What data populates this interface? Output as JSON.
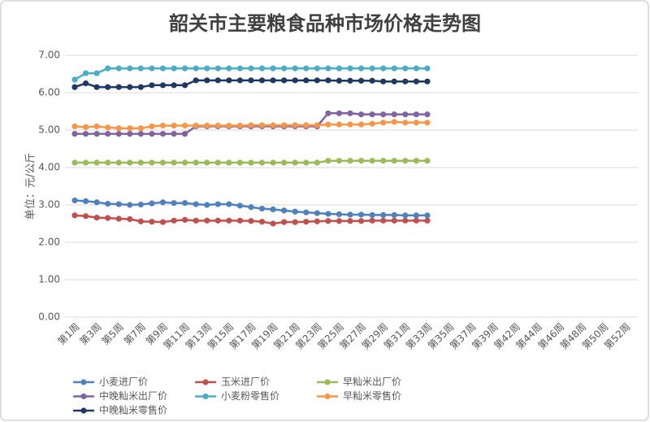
{
  "chart_data": {
    "type": "line",
    "title": "韶关市主要粮食品种市场价格走势图",
    "y_label": "单位：元/公斤",
    "categories": [
      "第1周",
      null,
      "第3周",
      null,
      "第5周",
      null,
      "第7周",
      null,
      "第9周",
      null,
      "第11周",
      null,
      "第13周",
      null,
      "第15周",
      null,
      "第17周",
      null,
      "第19周",
      null,
      "第21周",
      null,
      "第23周",
      null,
      "第25周",
      null,
      "第27周",
      null,
      "第29周",
      null,
      "第31周",
      null,
      "第33周",
      null,
      "第35周",
      null,
      "第37周",
      null,
      "第39周",
      null,
      "第42周",
      null,
      "第44周",
      null,
      "第46周",
      null,
      "第48周",
      null,
      "第50周",
      null,
      "第52周"
    ],
    "ylim": [
      0,
      7
    ],
    "yticks": [
      {
        "value": 0,
        "label": "0.00"
      },
      {
        "value": 1,
        "label": "1.00"
      },
      {
        "value": 2,
        "label": "2.00"
      },
      {
        "value": 3,
        "label": "3.00"
      },
      {
        "value": 4,
        "label": "4.00"
      },
      {
        "value": 5,
        "label": "5.00"
      },
      {
        "value": 6,
        "label": "6.00"
      },
      {
        "value": 7,
        "label": "7.00"
      }
    ],
    "grid": true,
    "legend": "bottom",
    "series": [
      {
        "name": "小麦进厂价",
        "color": "#4f81bd",
        "values": [
          3.12,
          3.1,
          3.07,
          3.03,
          3.02,
          3.0,
          3.01,
          3.04,
          3.07,
          3.05,
          3.05,
          3.02,
          3.0,
          3.02,
          3.02,
          2.98,
          2.94,
          2.9,
          2.88,
          2.85,
          2.82,
          2.8,
          2.78,
          2.76,
          2.75,
          2.74,
          2.74,
          2.73,
          2.73,
          2.73,
          2.72,
          2.72,
          2.72,
          null,
          null,
          null,
          null,
          null,
          null,
          null,
          null,
          null,
          null,
          null,
          null,
          null,
          null,
          null,
          null,
          null,
          null
        ]
      },
      {
        "name": "玉米进厂价",
        "color": "#c0504d",
        "values": [
          2.72,
          2.7,
          2.66,
          2.65,
          2.63,
          2.62,
          2.56,
          2.55,
          2.54,
          2.58,
          2.6,
          2.58,
          2.58,
          2.58,
          2.58,
          2.58,
          2.57,
          2.55,
          2.5,
          2.54,
          2.54,
          2.55,
          2.56,
          2.57,
          2.57,
          2.57,
          2.57,
          2.58,
          2.58,
          2.58,
          2.58,
          2.58,
          2.58,
          null,
          null,
          null,
          null,
          null,
          null,
          null,
          null,
          null,
          null,
          null,
          null,
          null,
          null,
          null,
          null,
          null,
          null
        ]
      },
      {
        "name": "早籼米出厂价",
        "color": "#9bbb59",
        "values": [
          4.13,
          4.13,
          4.13,
          4.13,
          4.13,
          4.13,
          4.13,
          4.13,
          4.13,
          4.13,
          4.13,
          4.13,
          4.13,
          4.13,
          4.13,
          4.13,
          4.13,
          4.13,
          4.13,
          4.13,
          4.13,
          4.13,
          4.13,
          4.18,
          4.18,
          4.18,
          4.18,
          4.18,
          4.18,
          4.18,
          4.18,
          4.18,
          4.18,
          null,
          null,
          null,
          null,
          null,
          null,
          null,
          null,
          null,
          null,
          null,
          null,
          null,
          null,
          null,
          null,
          null,
          null
        ]
      },
      {
        "name": "中晚籼米出厂价",
        "color": "#8064a2",
        "values": [
          4.9,
          4.9,
          4.9,
          4.9,
          4.9,
          4.9,
          4.9,
          4.9,
          4.9,
          4.9,
          4.9,
          5.1,
          5.1,
          5.1,
          5.1,
          5.1,
          5.1,
          5.1,
          5.1,
          5.1,
          5.1,
          5.1,
          5.1,
          5.45,
          5.45,
          5.45,
          5.42,
          5.42,
          5.42,
          5.42,
          5.42,
          5.42,
          5.42,
          null,
          null,
          null,
          null,
          null,
          null,
          null,
          null,
          null,
          null,
          null,
          null,
          null,
          null,
          null,
          null,
          null,
          null
        ]
      },
      {
        "name": "小麦粉零售价",
        "color": "#4bacc6",
        "values": [
          6.35,
          6.52,
          6.52,
          6.65,
          6.65,
          6.65,
          6.65,
          6.65,
          6.65,
          6.65,
          6.65,
          6.65,
          6.65,
          6.65,
          6.65,
          6.65,
          6.65,
          6.65,
          6.65,
          6.65,
          6.65,
          6.65,
          6.65,
          6.65,
          6.65,
          6.65,
          6.65,
          6.65,
          6.65,
          6.65,
          6.65,
          6.65,
          6.65,
          null,
          null,
          null,
          null,
          null,
          null,
          null,
          null,
          null,
          null,
          null,
          null,
          null,
          null,
          null,
          null,
          null,
          null
        ]
      },
      {
        "name": "早籼米零售价",
        "color": "#f79646",
        "values": [
          5.1,
          5.08,
          5.1,
          5.07,
          5.05,
          5.05,
          5.05,
          5.1,
          5.12,
          5.12,
          5.12,
          5.12,
          5.12,
          5.12,
          5.12,
          5.12,
          5.13,
          5.13,
          5.13,
          5.13,
          5.13,
          5.13,
          5.13,
          5.15,
          5.15,
          5.15,
          5.15,
          5.17,
          5.2,
          5.22,
          5.2,
          5.2,
          5.2,
          null,
          null,
          null,
          null,
          null,
          null,
          null,
          null,
          null,
          null,
          null,
          null,
          null,
          null,
          null,
          null,
          null,
          null
        ]
      },
      {
        "name": "中晚籼米零售价",
        "color": "#1f3864",
        "values": [
          6.15,
          6.25,
          6.15,
          6.15,
          6.15,
          6.15,
          6.15,
          6.2,
          6.2,
          6.2,
          6.2,
          6.33,
          6.33,
          6.33,
          6.33,
          6.33,
          6.33,
          6.33,
          6.33,
          6.33,
          6.33,
          6.33,
          6.33,
          6.33,
          6.32,
          6.32,
          6.32,
          6.32,
          6.3,
          6.3,
          6.3,
          6.3,
          6.3,
          null,
          null,
          null,
          null,
          null,
          null,
          null,
          null,
          null,
          null,
          null,
          null,
          null,
          null,
          null,
          null,
          null,
          null
        ]
      }
    ]
  }
}
